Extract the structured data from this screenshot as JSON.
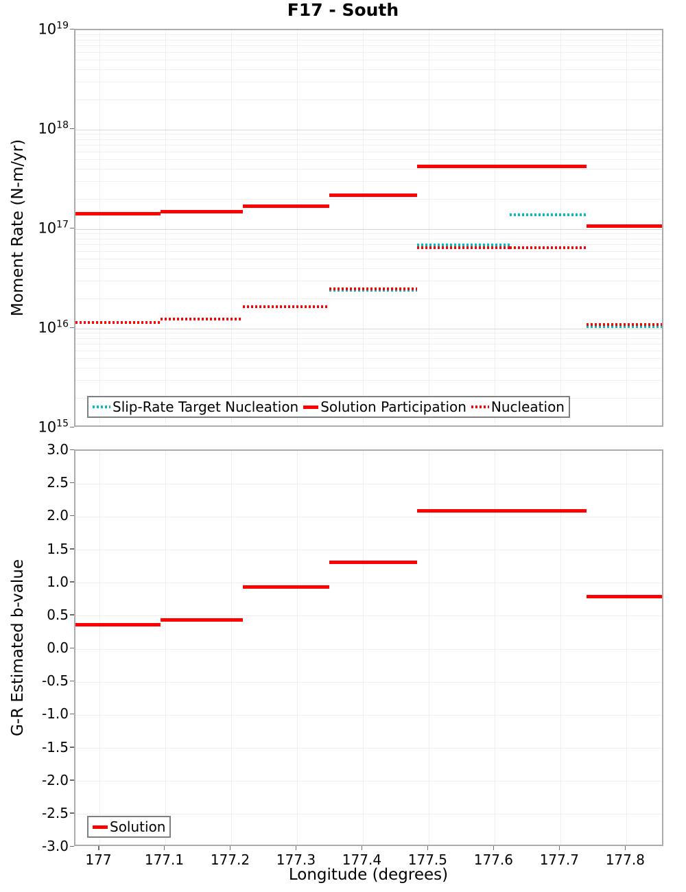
{
  "title": "F17 - South",
  "colors": {
    "red": "#FF0000",
    "cyan": "#00BCBC",
    "grid_minor": "#eeeeee",
    "grid_major": "#d8d8d8",
    "axis_frame": "#ababab",
    "legend_border": "#7f7f7f",
    "tick": "#6b6b6b",
    "text": "#000000",
    "background": "#ffffff"
  },
  "x_axis": {
    "label": "Longitude (degrees)",
    "min": 176.963,
    "max": 177.858,
    "ticks": [
      177.0,
      177.1,
      177.2,
      177.3,
      177.4,
      177.5,
      177.6,
      177.7,
      177.8
    ],
    "tick_labels": [
      "177",
      "177.1",
      "177.2",
      "177.3",
      "177.4",
      "177.5",
      "177.6",
      "177.7",
      "177.8"
    ],
    "segment_edges": [
      176.963,
      177.092,
      177.217,
      177.349,
      177.482,
      177.623,
      177.739,
      177.858
    ]
  },
  "chart_data": [
    {
      "type": "line",
      "name": "moment-rate",
      "ylabel": "Moment Rate (N-m/yr)",
      "yscale": "log",
      "ylim": [
        1000000000000000.0,
        1e+19
      ],
      "ytick_exponents": [
        19,
        18,
        17,
        16,
        15
      ],
      "grid": true,
      "legend_position": "bottom-left-inside",
      "series": [
        {
          "name": "Slip-Rate Target Nucleation",
          "style": "dotted",
          "color": "cyan",
          "values": [
            1.15e+16,
            1.25e+16,
            1.66e+16,
            2.45e+16,
            6.9e+16,
            1.4e+17,
            1.05e+16
          ]
        },
        {
          "name": "Solution Participation",
          "style": "solid",
          "color": "red",
          "values": [
            1.43e+17,
            1.49e+17,
            1.7e+17,
            2.2e+17,
            4.27e+17,
            4.27e+17,
            1.07e+17
          ]
        },
        {
          "name": "Nucleation",
          "style": "dotted",
          "color": "red",
          "values": [
            1.15e+16,
            1.25e+16,
            1.66e+16,
            2.5e+16,
            6.5e+16,
            6.5e+16,
            1.1e+16
          ]
        }
      ]
    },
    {
      "type": "line",
      "name": "b-value",
      "ylabel": "G-R Estimated b-value",
      "yscale": "linear",
      "ylim": [
        -3.0,
        3.0
      ],
      "ytick_step": 0.5,
      "ytick_labels": [
        "3.0",
        "2.5",
        "2.0",
        "1.5",
        "1.0",
        "0.5",
        "0.0",
        "-0.5",
        "-1.0",
        "-1.5",
        "-2.0",
        "-2.5",
        "-3.0"
      ],
      "grid": true,
      "legend_position": "bottom-left-inside",
      "series": [
        {
          "name": "Solution",
          "style": "solid",
          "color": "red",
          "values": [
            0.37,
            0.44,
            0.94,
            1.31,
            2.09,
            2.09,
            0.79
          ]
        }
      ]
    }
  ]
}
